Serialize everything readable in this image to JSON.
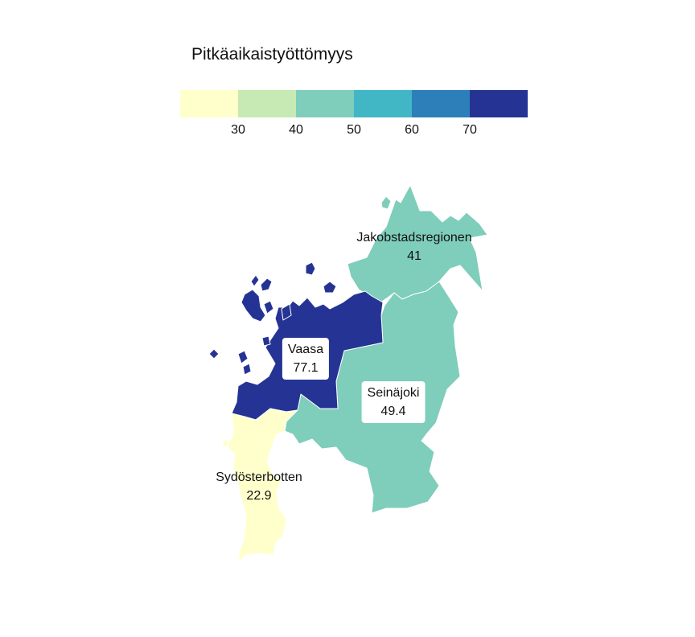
{
  "legend": {
    "title": "Pitkäaikaistyöttömyys",
    "colors": [
      "#ffffcc",
      "#c7e9b4",
      "#7fcdbb",
      "#41b6c4",
      "#2c7fb8",
      "#253494"
    ],
    "ticks": [
      "30",
      "40",
      "50",
      "60",
      "70"
    ]
  },
  "regions": [
    {
      "id": "jakobstadsregionen",
      "name": "Jakobstadsregionen",
      "value": "41",
      "color": "#7fcdbb"
    },
    {
      "id": "vaasa",
      "name": "Vaasa",
      "value": "77.1",
      "color": "#253494"
    },
    {
      "id": "seinajoki",
      "name": "Seinäjoki",
      "value": "49.4",
      "color": "#7fcdbb"
    },
    {
      "id": "sydosterbotten",
      "name": "Sydösterbotten",
      "value": "22.9",
      "color": "#ffffcc"
    }
  ]
}
